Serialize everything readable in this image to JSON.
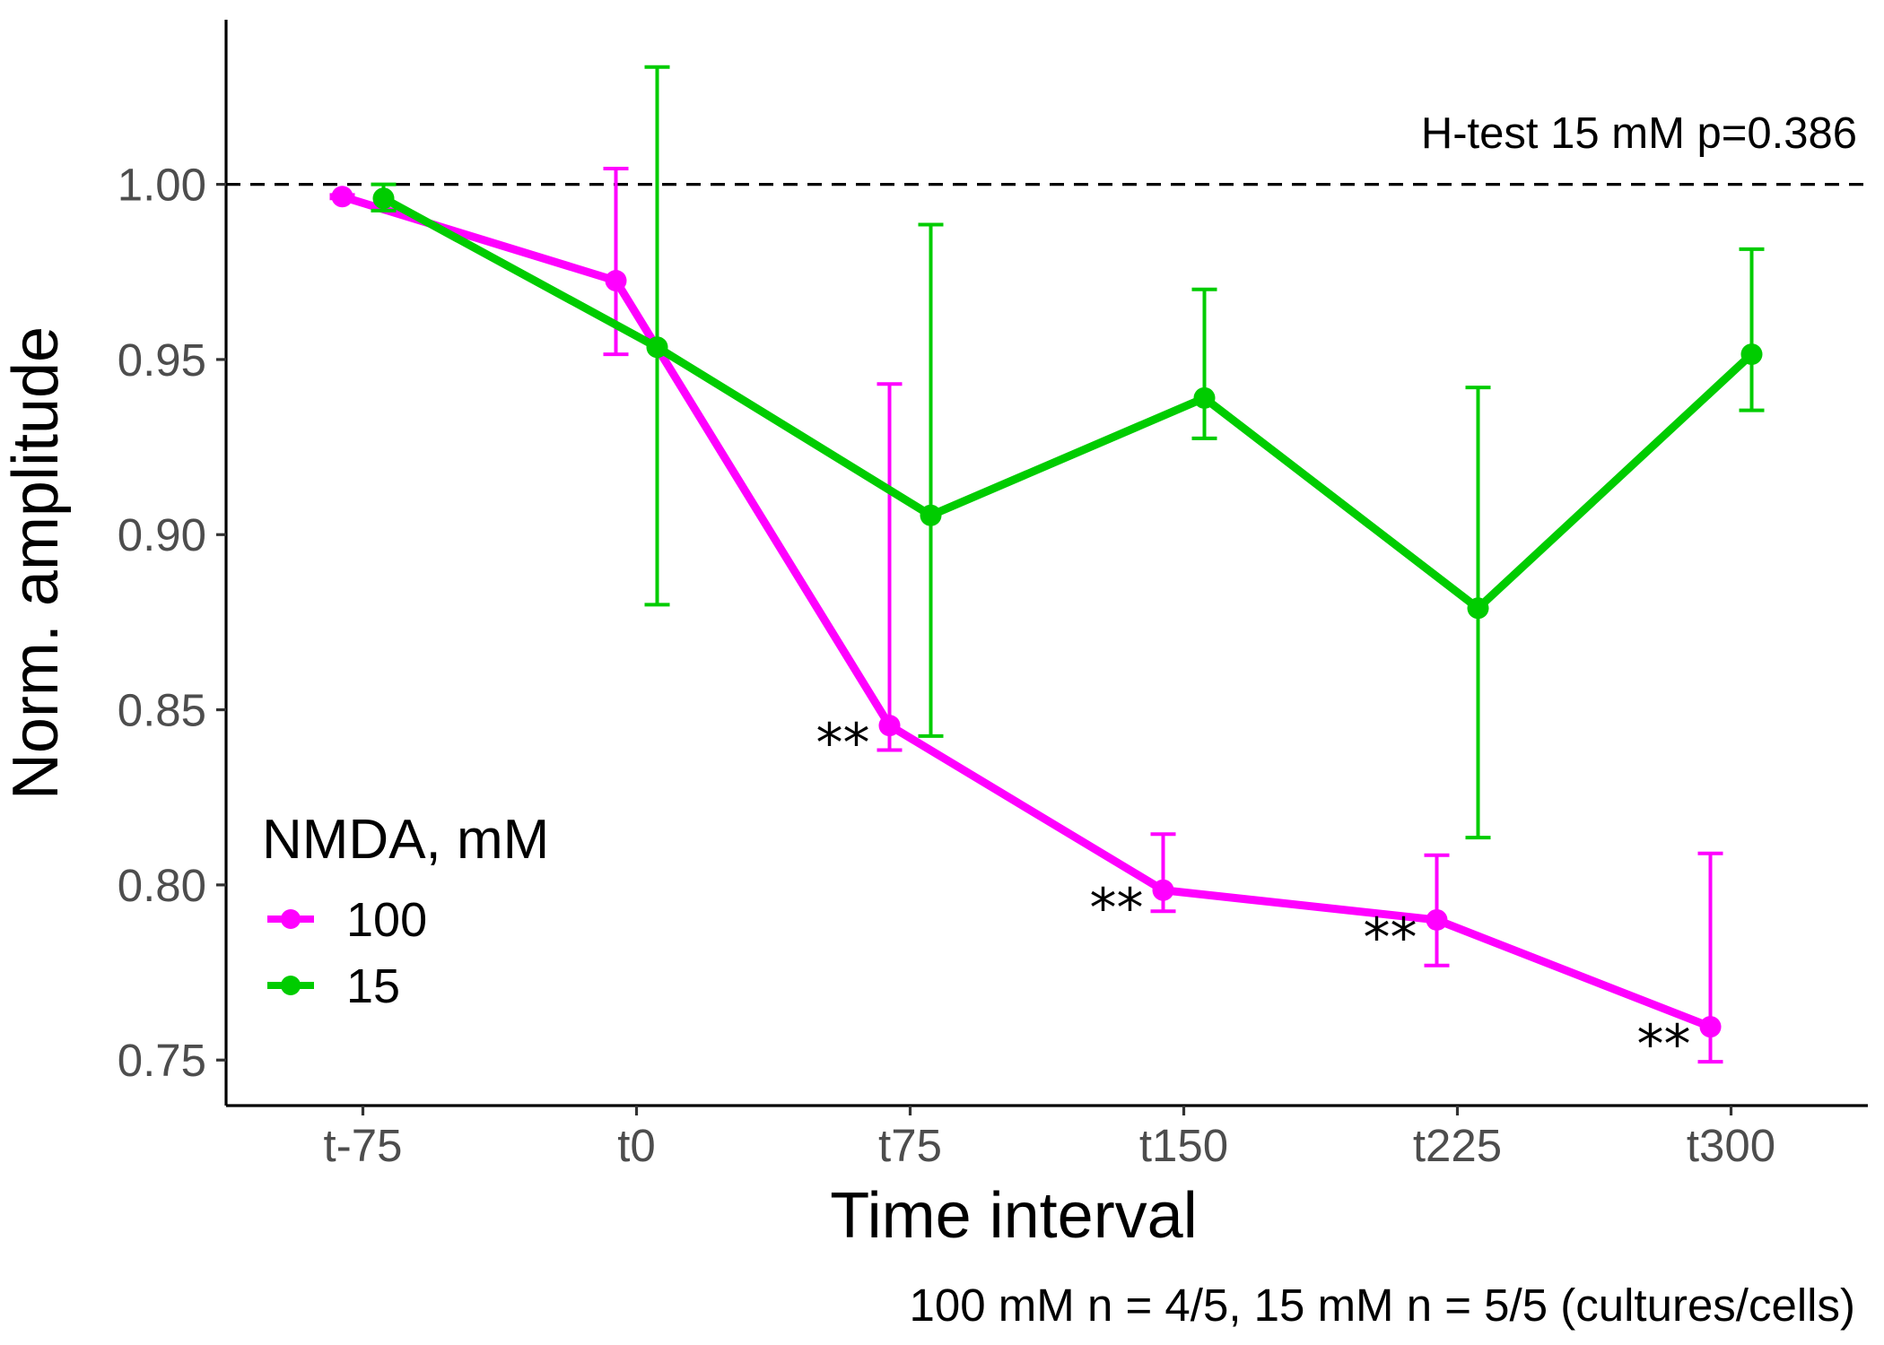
{
  "chart_data": {
    "type": "line",
    "xlabel": "Time interval",
    "ylabel": "Norm. amplitude",
    "categories": [
      "t-75",
      "t0",
      "t75",
      "t150",
      "t225",
      "t300"
    ],
    "ylim": [
      0.737,
      1.047
    ],
    "yticks": [
      "0.75",
      "0.80",
      "0.85",
      "0.90",
      "0.95",
      "1.00"
    ],
    "yticks_values": [
      0.75,
      0.8,
      0.85,
      0.9,
      0.95,
      1.0
    ],
    "reference_line": 1.0,
    "annotation": "H-test 15 mM p=0.386",
    "caption": "100 mM n = 4/5, 15 mM n = 5/5 (cultures/cells)",
    "legend": {
      "title": "NMDA, mM",
      "position": "bottom-left"
    },
    "grid": false,
    "series": [
      {
        "name": "100",
        "color": "#ff00ff",
        "values": [
          0.9965,
          0.9725,
          0.8455,
          0.7985,
          0.79,
          0.7595
        ],
        "lower": [
          0.996,
          0.9515,
          0.8385,
          0.7925,
          0.777,
          0.7495
        ],
        "upper": [
          0.997,
          1.0045,
          0.943,
          0.8145,
          0.8085,
          0.809
        ],
        "significance": [
          "",
          "",
          "**",
          "**",
          "**",
          "**"
        ]
      },
      {
        "name": "15",
        "color": "#00cc00",
        "values": [
          0.996,
          0.9535,
          0.9055,
          0.939,
          0.879,
          0.9515
        ],
        "lower": [
          0.9925,
          0.88,
          0.8425,
          0.9275,
          0.8135,
          0.9355
        ],
        "upper": [
          1.0,
          1.0335,
          0.9885,
          0.97,
          0.942,
          0.9815
        ],
        "significance": [
          "",
          "",
          "",
          "",
          "",
          ""
        ]
      }
    ]
  }
}
